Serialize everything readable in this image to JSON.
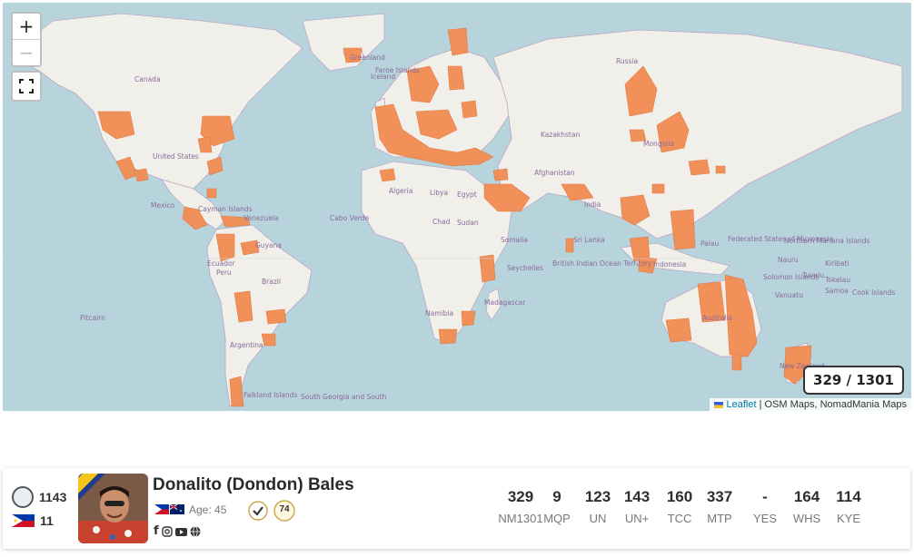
{
  "map": {
    "zoom_in_label": "+",
    "zoom_out_label": "−",
    "fullscreen_icon": "fullscreen-icon",
    "counter": "329 / 1301",
    "attribution": {
      "leaflet": "Leaflet",
      "rest": "| OSM Maps, NomadMania Maps"
    },
    "labels": {
      "russia": "Russia",
      "canada": "Canada",
      "united_states": "United States",
      "mexico": "Mexico",
      "cayman": "Cayman Islands",
      "venezuela": "Venezuela",
      "guyana": "Guyana",
      "ecuador": "Ecuador",
      "peru": "Peru",
      "brazil": "Brazil",
      "argentina": "Argentina",
      "pitcairn": "Pitcairn",
      "falkland": "Falkland Islands",
      "south_georgia": "South Georgia and South",
      "kazakhstan": "Kazakhstan",
      "afghanistan": "Afghanistan",
      "libya": "Libya",
      "egypt": "Egypt",
      "algeria": "Algeria",
      "chad": "Chad",
      "sudan": "Sudan",
      "somalia": "Somalia",
      "cabo_verde": "Cabo Verde",
      "namibia": "Namibia",
      "madagascar": "Madagascar",
      "seychelles": "Seychelles",
      "british_indian": "British Indian Ocean Territory",
      "sri_lanka": "Sri Lanka",
      "indonesia": "Indonesia",
      "australia": "Australia",
      "new_zealand": "New Zealand",
      "micronesia": "Federated States of Micronesia",
      "solomon": "Solomon Islands",
      "vanuatu": "Vanuatu",
      "samoa": "Samoa",
      "tokelau": "Tokelau",
      "cook": "Cook Islands",
      "kiribati": "Kiribati",
      "nauru": "Nauru",
      "palau": "Palau",
      "iceland": "Iceland",
      "faroe": "Faroe Islands",
      "mongolia": "Mongolia",
      "india": "India",
      "greenland": "Greenland",
      "northern_mariana": "Northern Mariana Islands",
      "tuvalu": "Tuvalu"
    }
  },
  "profile": {
    "rank_nm": "1143",
    "rank_country": "11",
    "name": "Donalito (Dondon) Bales",
    "age": "Age: 45",
    "level_badge": "74",
    "social_icons": [
      "facebook-icon",
      "instagram-icon",
      "youtube-icon",
      "globe-icon"
    ]
  },
  "stats": [
    {
      "value": "329",
      "label": "NM1301"
    },
    {
      "value": "9",
      "label": "MQP"
    },
    {
      "value": "123",
      "label": "UN"
    },
    {
      "value": "143",
      "label": "UN+"
    },
    {
      "value": "160",
      "label": "TCC"
    },
    {
      "value": "337",
      "label": "MTP"
    },
    {
      "value": "-",
      "label": "YES"
    },
    {
      "value": "164",
      "label": "WHS"
    },
    {
      "value": "114",
      "label": "KYE"
    }
  ],
  "colors": {
    "visited": "#f28c52",
    "land": "#f1efe9",
    "water": "#b7d4dd",
    "border": "#b9a6c4"
  }
}
